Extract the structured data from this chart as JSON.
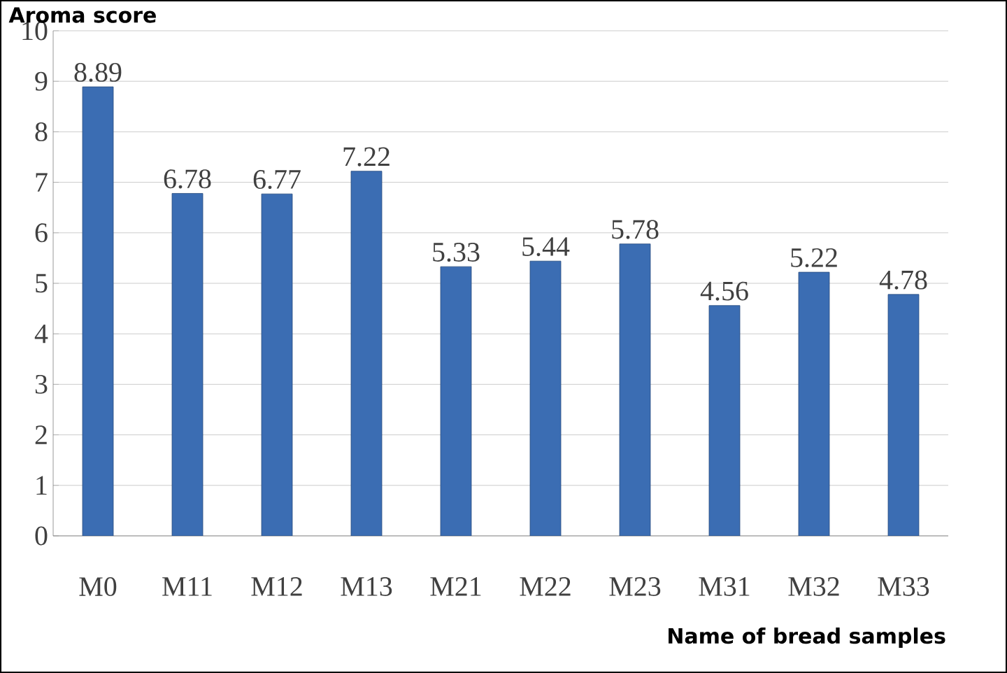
{
  "chart_data": {
    "type": "bar",
    "xlabel": "Name of bread samples",
    "ylabel": "Aroma score",
    "categories": [
      "M0",
      "M11",
      "M12",
      "M13",
      "M21",
      "M22",
      "M23",
      "M31",
      "M32",
      "M33"
    ],
    "values": [
      8.89,
      6.78,
      6.77,
      7.22,
      5.33,
      5.44,
      5.78,
      4.56,
      5.22,
      4.78
    ],
    "color": "#3b6db3",
    "ylim": [
      0,
      10
    ],
    "yticks": [
      0,
      1,
      2,
      3,
      4,
      5,
      6,
      7,
      8,
      9,
      10
    ],
    "grid": "y",
    "data_labels": true
  }
}
